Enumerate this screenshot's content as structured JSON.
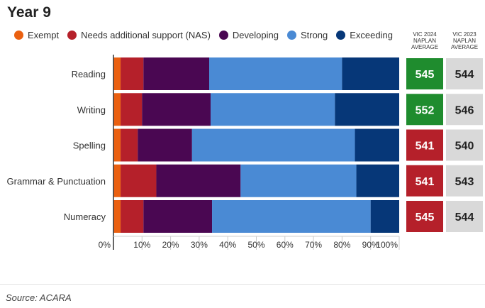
{
  "title": "Year 9",
  "legend": [
    {
      "label": "Exempt",
      "color": "#ea6010"
    },
    {
      "label": "Needs additional support (NAS)",
      "color": "#b5202a"
    },
    {
      "label": "Developing",
      "color": "#4a0752"
    },
    {
      "label": "Strong",
      "color": "#4a8ad4"
    },
    {
      "label": "Exceeding",
      "color": "#063778"
    }
  ],
  "columns": {
    "vic2024": {
      "line1": "VIC 2024",
      "line2": "NAPLAN",
      "line3": "AVERAGE"
    },
    "vic2023": {
      "line1": "VIC 2023",
      "line2": "NAPLAN",
      "line3": "AVERAGE"
    }
  },
  "colors": {
    "above": "#1f8c2e",
    "below": "#b5202a",
    "grey_box": "#d9d9d9"
  },
  "chart_data": {
    "type": "bar",
    "orientation": "horizontal",
    "stacked": true,
    "title": "Year 9",
    "categories": [
      "Reading",
      "Writing",
      "Spelling",
      "Grammar & Punctuation",
      "Numeracy"
    ],
    "series": [
      {
        "name": "Exempt",
        "values": [
          2.5,
          2.5,
          2.5,
          2.5,
          2.5
        ]
      },
      {
        "name": "Needs additional support (NAS)",
        "values": [
          8.0,
          7.5,
          6.0,
          12.5,
          8.0
        ]
      },
      {
        "name": "Developing",
        "values": [
          23.0,
          24.0,
          19.0,
          29.5,
          24.0
        ]
      },
      {
        "name": "Strong",
        "values": [
          46.5,
          43.5,
          57.0,
          40.5,
          55.5
        ]
      },
      {
        "name": "Exceeding",
        "values": [
          20.0,
          22.5,
          15.5,
          15.0,
          10.0
        ]
      }
    ],
    "xlim": [
      0,
      100
    ],
    "xticks": [
      "0%",
      "10%",
      "20%",
      "30%",
      "40%",
      "50%",
      "60%",
      "70%",
      "80%",
      "90%",
      "100%"
    ],
    "vic_2024_average": [
      {
        "value": "545",
        "status": "above"
      },
      {
        "value": "552",
        "status": "above"
      },
      {
        "value": "541",
        "status": "below"
      },
      {
        "value": "541",
        "status": "below"
      },
      {
        "value": "545",
        "status": "below"
      }
    ],
    "vic_2023_average": [
      "544",
      "546",
      "540",
      "543",
      "544"
    ]
  },
  "source": "Source: ACARA"
}
